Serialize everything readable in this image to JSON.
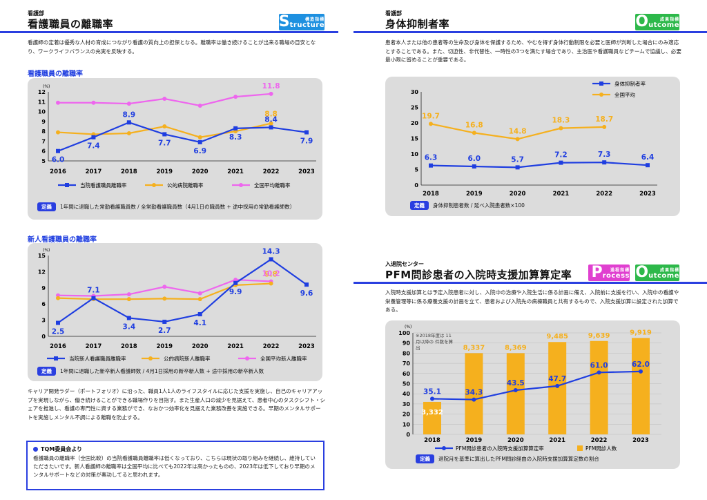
{
  "left": {
    "dept": "看護部",
    "title": "看護職員の離職率",
    "badge": {
      "letter": "S",
      "word": "tructure",
      "label": "構造指標",
      "color": "#1e90e0"
    },
    "description": "看護師の定着は優秀な人材の育成につながり看護の質向上の担保となる。離職率は働き続けることが出来る職場の目安となり、ワークライフバランスの充実を反映する。",
    "chart1": {
      "subtitle": "看護職員の離職率",
      "definition_tag": "定義",
      "definition": "1年間に退職した常勤看護職員数 / 全常勤看護職員数（4月1日の職員数 + 途中採用の常勤看護師数）"
    },
    "chart2": {
      "subtitle": "新人看護職員の離職率",
      "definition_tag": "定義",
      "definition": "1年間に退職した新卒新人看護師数 / 4月1日採用の新卒新人数 + 途中採用の新卒新人数"
    },
    "paragraph": "キャリア開発ラダー（ポートフォリオ）に沿った、職員1人1人のライフスタイルに応じた支援を実施し、自己のキャリアアップを実現しながら、働き続けることができる職場作りを目指す。また生産人口の減少を見据えて、患者中心のタスクシフト・シェアを推進し、看護の専門性に資する業務ができ、なおかつ効率化を見据えた業務改善を実施できる。早期のメンタルサポートを実施しメンタル不調による離職を防止する。",
    "tqm": {
      "heading": "TQM委員会より",
      "text": "看護職員の離職率（全国比較）の当院看護職員離職率は低くなっており、こちらは現状の取り組みを継続し、維持していただきたいです。新人看護師の離職率は全国平均に比べても2022年は高かったものの、2023年は低下しており早期のメンタルサポートなどの対策が奏功してると思われます。"
    }
  },
  "right": {
    "section1": {
      "dept": "看護部",
      "title": "身体抑制者率",
      "badge": {
        "letter": "O",
        "word": "utcome",
        "label": "成果指標",
        "color": "#2db84a"
      },
      "description": "患者本人または他の患者等の生命及び身体を保護するため、やむを得ず身体行動制限を必要と医師が判断した場合にのみ適応とすることである。また、切迫性、非代替性、一時性の3つを満たす場合であり、主治医や看護職員などチームで協議し、必要最小限に留めることが重要である。",
      "definition_tag": "定義",
      "definition": "身体抑制患者数 / 延べ入院患者数×100"
    },
    "section2": {
      "dept": "入退院センター",
      "title": "PFM問診患者の入院時支援加算算定率",
      "badge_p": {
        "letter": "P",
        "word": "rocess",
        "label": "過程指標",
        "color": "#e040d0"
      },
      "badge_o": {
        "letter": "O",
        "word": "utcome",
        "label": "成果指標",
        "color": "#2db84a"
      },
      "description": "入院時支援加算とは予定入院患者に対し、入院中の治療や入院生活に係る計画に備え、入院前に支援を行い、入院中の看護や栄養管理等に係る療養支援の計画を立て、患者および入院先の病棟職員と共有するもので、入院支援加算に設定された加算である。",
      "note": "※2018年度は 11月以降の 件数を算出",
      "definition_tag": "定義",
      "definition": "退院月を基準に算出したPFM問診経由の入院時支援加算算定数の割合"
    }
  },
  "chart_data": [
    {
      "type": "line",
      "title": "看護職員の離職率",
      "unit": "(%)",
      "categories": [
        "2016",
        "2017",
        "2018",
        "2019",
        "2020",
        "2021",
        "2022",
        "2023"
      ],
      "ylim": [
        5,
        12
      ],
      "yticks": [
        5,
        6,
        7,
        8,
        9,
        10,
        11,
        12
      ],
      "series": [
        {
          "name": "当院看護職員離職率",
          "color": "#1f3ee0",
          "values": [
            6.0,
            7.4,
            8.9,
            7.7,
            6.9,
            8.3,
            8.4,
            7.9
          ],
          "labels": [
            "6.0",
            "7.4",
            "8.9",
            "7.7",
            "6.9",
            "8.3",
            "8.4",
            "7.9"
          ]
        },
        {
          "name": "公的病院離職率",
          "color": "#f5b01e",
          "values": [
            7.9,
            7.7,
            7.8,
            8.5,
            7.4,
            8.0,
            8.8,
            null
          ],
          "labels": [
            "",
            "",
            "",
            "",
            "",
            "",
            "8.8",
            ""
          ]
        },
        {
          "name": "全国平均離職率",
          "color": "#ee66ee",
          "values": [
            10.9,
            10.9,
            10.8,
            11.3,
            10.6,
            11.5,
            11.8,
            null
          ],
          "labels": [
            "",
            "",
            "",
            "",
            "",
            "",
            "11.8",
            ""
          ]
        }
      ]
    },
    {
      "type": "line",
      "title": "新人看護職員の離職率",
      "unit": "(%)",
      "categories": [
        "2016",
        "2017",
        "2018",
        "2019",
        "2020",
        "2021",
        "2022",
        "2023"
      ],
      "ylim": [
        0,
        15
      ],
      "yticks": [
        0,
        3,
        6,
        9,
        12,
        15
      ],
      "series": [
        {
          "name": "当院新人看護職員離職率",
          "color": "#1f3ee0",
          "values": [
            2.5,
            7.1,
            3.4,
            2.7,
            4.1,
            9.9,
            14.3,
            9.6
          ],
          "labels": [
            "2.5",
            "7.1",
            "3.4",
            "2.7",
            "4.1",
            "9.9",
            "14.3",
            "9.6"
          ]
        },
        {
          "name": "公的病院新人離職率",
          "color": "#f5b01e",
          "values": [
            7.1,
            6.9,
            6.9,
            7.0,
            6.9,
            9.5,
            9.8,
            null
          ],
          "labels": [
            "",
            "",
            "",
            "",
            "",
            "",
            "9.8",
            ""
          ]
        },
        {
          "name": "全国平均新人離職率",
          "color": "#ee66ee",
          "values": [
            7.6,
            7.5,
            7.8,
            9.2,
            8.0,
            10.5,
            10.2,
            null
          ],
          "labels": [
            "",
            "",
            "",
            "",
            "",
            "",
            "10.2",
            ""
          ]
        }
      ]
    },
    {
      "type": "line",
      "title": "身体抑制者率",
      "categories": [
        "2018",
        "2019",
        "2020",
        "2021",
        "2022",
        "2023"
      ],
      "ylim": [
        0,
        30
      ],
      "yticks": [
        0,
        5,
        10,
        15,
        20,
        25,
        30
      ],
      "series": [
        {
          "name": "身体抑制者率",
          "color": "#1f3ee0",
          "values": [
            6.3,
            6.0,
            5.7,
            7.2,
            7.3,
            6.4
          ],
          "labels": [
            "6.3",
            "6.0",
            "5.7",
            "7.2",
            "7.3",
            "6.4"
          ]
        },
        {
          "name": "全国平均",
          "color": "#f5b01e",
          "values": [
            19.7,
            16.8,
            14.8,
            18.3,
            18.7,
            null
          ],
          "labels": [
            "19.7",
            "16.8",
            "14.8",
            "18.3",
            "18.7",
            ""
          ]
        }
      ]
    },
    {
      "type": "bar+line",
      "title": "PFM問診患者の入院時支援加算算定率",
      "unit": "(%)",
      "categories": [
        "2018",
        "2019",
        "2020",
        "2021",
        "2022",
        "2023"
      ],
      "ylim": [
        0,
        100
      ],
      "yticks": [
        0,
        10,
        20,
        30,
        40,
        50,
        60,
        70,
        80,
        90,
        100
      ],
      "bars": {
        "name": "PFM問診人数",
        "color": "#f5b01e",
        "values": [
          3332,
          8337,
          8369,
          9485,
          9639,
          9919
        ],
        "labels": [
          "3,332",
          "8,337",
          "8,369",
          "9,485",
          "9,639",
          "9,919"
        ],
        "display_pct": [
          32,
          80,
          80,
          91,
          92,
          95
        ]
      },
      "line": {
        "name": "PFM問診患者の入院時支援加算算定率",
        "color": "#1f3ee0",
        "values": [
          35.1,
          34.3,
          43.5,
          47.7,
          61.0,
          62.0
        ],
        "labels": [
          "35.1",
          "34.3",
          "43.5",
          "47.7",
          "61.0",
          "62.0"
        ]
      }
    }
  ]
}
